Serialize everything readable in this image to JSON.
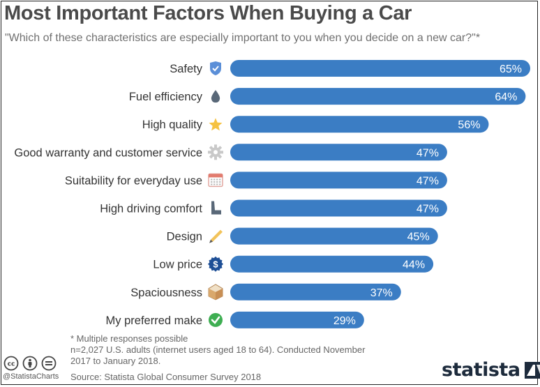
{
  "header": {
    "title": "Most Important Factors When Buying a Car",
    "subtitle": "\"Which of these characteristics are especially important to you when you decide on a new car?\"*"
  },
  "colors": {
    "bar": "#3b7dc4",
    "bar_label": "#ffffff",
    "category_label": "#333333"
  },
  "chart_data": {
    "type": "bar",
    "orientation": "horizontal",
    "categories": [
      "Safety",
      "Fuel efficiency",
      "High quality",
      "Good warranty and customer service",
      "Suitability for everyday use",
      "High driving comfort",
      "Design",
      "Low price",
      "Spaciousness",
      "My preferred make"
    ],
    "values": [
      65,
      64,
      56,
      47,
      47,
      47,
      45,
      44,
      37,
      29
    ],
    "value_labels": [
      "65%",
      "64%",
      "56%",
      "47%",
      "47%",
      "47%",
      "45%",
      "44%",
      "37%",
      "29%"
    ],
    "icons": [
      "shield-icon",
      "drop-icon",
      "star-icon",
      "gear-icon",
      "calendar-icon",
      "seat-icon",
      "pencil-icon",
      "price-badge-icon",
      "box-icon",
      "check-icon"
    ],
    "xlim": [
      0,
      65
    ],
    "title": "Most Important Factors When Buying a Car",
    "xlabel": "",
    "ylabel": "",
    "grid": false
  },
  "footer": {
    "note1": "* Multiple responses possible",
    "note2": "n=2,027 U.S. adults (internet users aged 18 to 64). Conducted November",
    "note3": "2017 to January 2018.",
    "source": "Source: Statista Global Consumer Survey 2018",
    "handle": "@StatistaCharts",
    "brand": "statista"
  }
}
